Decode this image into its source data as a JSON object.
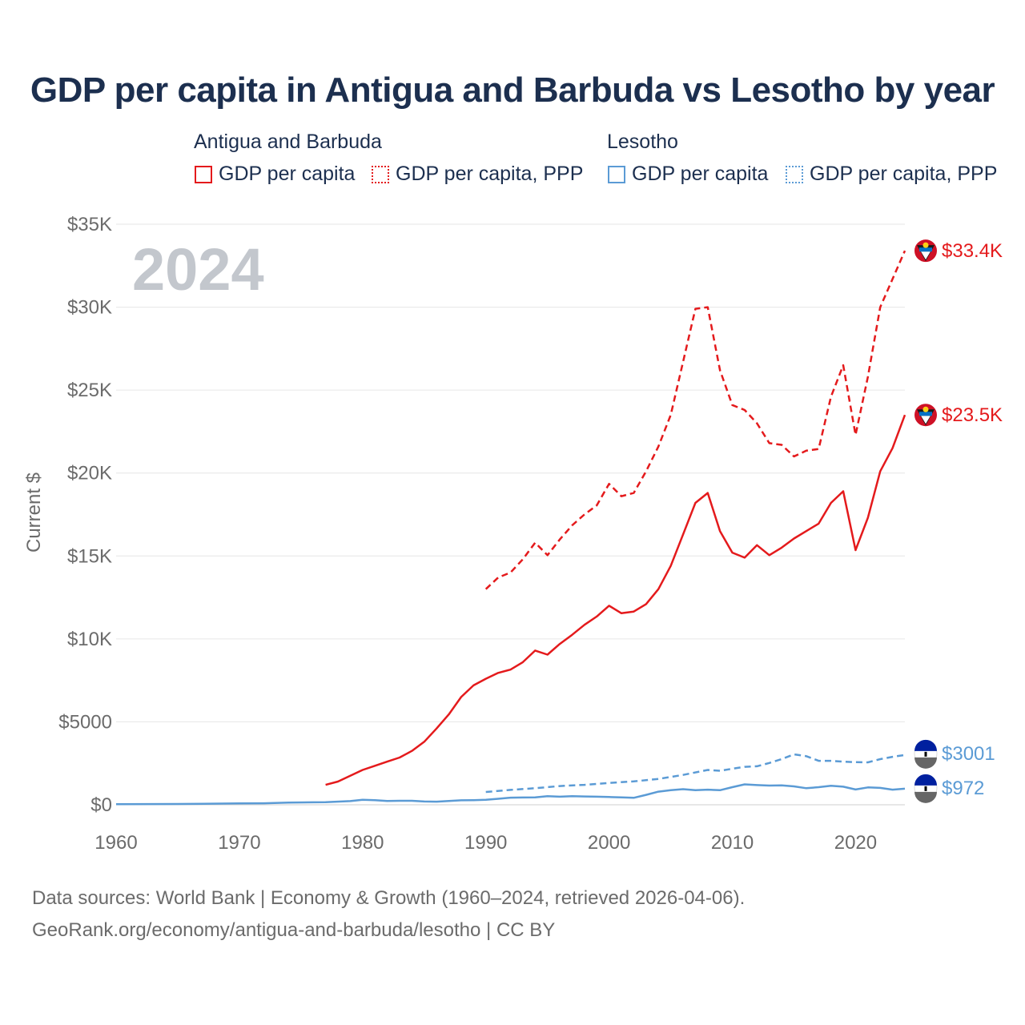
{
  "title": "GDP per capita in Antigua and Barbuda vs Lesotho by year",
  "legend": {
    "groups": [
      {
        "name": "Antigua and Barbuda",
        "items": [
          {
            "label": "GDP per capita",
            "style": "solid",
            "color": "#e41a1c"
          },
          {
            "label": "GDP per capita, PPP",
            "style": "dotted",
            "color": "#e41a1c"
          }
        ]
      },
      {
        "name": "Lesotho",
        "items": [
          {
            "label": "GDP per capita",
            "style": "solid",
            "color": "#5b9bd5"
          },
          {
            "label": "GDP per capita, PPP",
            "style": "dotted",
            "color": "#5b9bd5"
          }
        ]
      }
    ]
  },
  "footer": {
    "line1": "Data sources: World Bank | Economy & Growth (1960–2024, retrieved 2026-04-06).",
    "line2": "GeoRank.org/economy/antigua-and-barbuda/lesotho | CC BY"
  },
  "chart_data": {
    "type": "line",
    "year_label": "2024",
    "ylabel": "Current $",
    "xlim": [
      1960,
      2024
    ],
    "ylim": [
      0,
      35000
    ],
    "x_ticks": [
      1960,
      1970,
      1980,
      1990,
      2000,
      2010,
      2020
    ],
    "y_ticks": [
      0,
      5000,
      10000,
      15000,
      20000,
      25000,
      30000,
      35000
    ],
    "y_tick_labels": [
      "$0",
      "$5000",
      "$10K",
      "$15K",
      "$20K",
      "$25K",
      "$30K",
      "$35K"
    ],
    "series": [
      {
        "name": "Antigua and Barbuda GDP per capita",
        "color": "#e41a1c",
        "dash": "solid",
        "end_label": "$23.5K",
        "x": [
          1977,
          1978,
          1979,
          1980,
          1981,
          1982,
          1983,
          1984,
          1985,
          1986,
          1987,
          1988,
          1989,
          1990,
          1991,
          1992,
          1993,
          1994,
          1995,
          1996,
          1997,
          1998,
          1999,
          2000,
          2001,
          2002,
          2003,
          2004,
          2005,
          2006,
          2007,
          2008,
          2009,
          2010,
          2011,
          2012,
          2013,
          2014,
          2015,
          2016,
          2017,
          2018,
          2019,
          2020,
          2021,
          2022,
          2023,
          2024
        ],
        "values": [
          1200,
          1400,
          1750,
          2100,
          2350,
          2600,
          2850,
          3250,
          3800,
          4600,
          5450,
          6500,
          7200,
          7600,
          7950,
          8150,
          8600,
          9300,
          9050,
          9700,
          10250,
          10850,
          11350,
          12000,
          11550,
          11650,
          12100,
          13000,
          14400,
          16300,
          18200,
          18800,
          16500,
          15200,
          14900,
          15650,
          15050,
          15500,
          16050,
          16500,
          16950,
          18200,
          18900,
          15350,
          17300,
          20100,
          21500,
          23500
        ]
      },
      {
        "name": "Antigua and Barbuda GDP per capita, PPP",
        "color": "#e41a1c",
        "dash": "dashed",
        "end_label": "$33.4K",
        "x": [
          1990,
          1991,
          1992,
          1993,
          1994,
          1995,
          1996,
          1997,
          1998,
          1999,
          2000,
          2001,
          2002,
          2003,
          2004,
          2005,
          2006,
          2007,
          2008,
          2009,
          2010,
          2011,
          2012,
          2013,
          2014,
          2015,
          2016,
          2017,
          2018,
          2019,
          2020,
          2021,
          2022,
          2023,
          2024
        ],
        "values": [
          13000,
          13700,
          14000,
          14800,
          15800,
          15050,
          16000,
          16850,
          17500,
          18050,
          19350,
          18600,
          18800,
          20100,
          21600,
          23500,
          26700,
          29900,
          30000,
          26200,
          24100,
          23800,
          23000,
          21800,
          21700,
          21000,
          21350,
          21450,
          24600,
          26500,
          22300,
          25800,
          30000,
          31700,
          33400
        ]
      },
      {
        "name": "Lesotho GDP per capita",
        "color": "#5b9bd5",
        "dash": "solid",
        "end_label": "$972",
        "x": [
          1960,
          1965,
          1970,
          1972,
          1974,
          1976,
          1977,
          1979,
          1980,
          1981,
          1982,
          1983,
          1984,
          1985,
          1986,
          1987,
          1988,
          1989,
          1990,
          1991,
          1992,
          1993,
          1994,
          1995,
          1996,
          1997,
          1998,
          1999,
          2000,
          2001,
          2002,
          2003,
          2004,
          2005,
          2006,
          2007,
          2008,
          2009,
          2010,
          2011,
          2012,
          2013,
          2014,
          2015,
          2016,
          2017,
          2018,
          2019,
          2020,
          2021,
          2022,
          2023,
          2024
        ],
        "values": [
          40,
          50,
          80,
          90,
          130,
          150,
          160,
          220,
          300,
          280,
          230,
          240,
          240,
          200,
          190,
          230,
          270,
          280,
          300,
          360,
          430,
          440,
          450,
          520,
          490,
          520,
          500,
          490,
          470,
          450,
          420,
          600,
          790,
          880,
          940,
          880,
          910,
          880,
          1060,
          1230,
          1190,
          1160,
          1170,
          1110,
          1000,
          1060,
          1150,
          1090,
          920,
          1050,
          1020,
          910,
          972
        ]
      },
      {
        "name": "Lesotho GDP per capita, PPP",
        "color": "#5b9bd5",
        "dash": "dashed",
        "end_label": "$3001",
        "x": [
          1990,
          1992,
          1994,
          1996,
          1998,
          2000,
          2002,
          2004,
          2006,
          2008,
          2009,
          2010,
          2011,
          2012,
          2013,
          2014,
          2015,
          2016,
          2017,
          2018,
          2019,
          2020,
          2021,
          2022,
          2023,
          2024
        ],
        "values": [
          770,
          900,
          1000,
          1130,
          1200,
          1320,
          1410,
          1560,
          1800,
          2100,
          2050,
          2170,
          2290,
          2320,
          2520,
          2750,
          3040,
          2930,
          2650,
          2650,
          2600,
          2570,
          2560,
          2750,
          2890,
          3001
        ]
      }
    ]
  }
}
